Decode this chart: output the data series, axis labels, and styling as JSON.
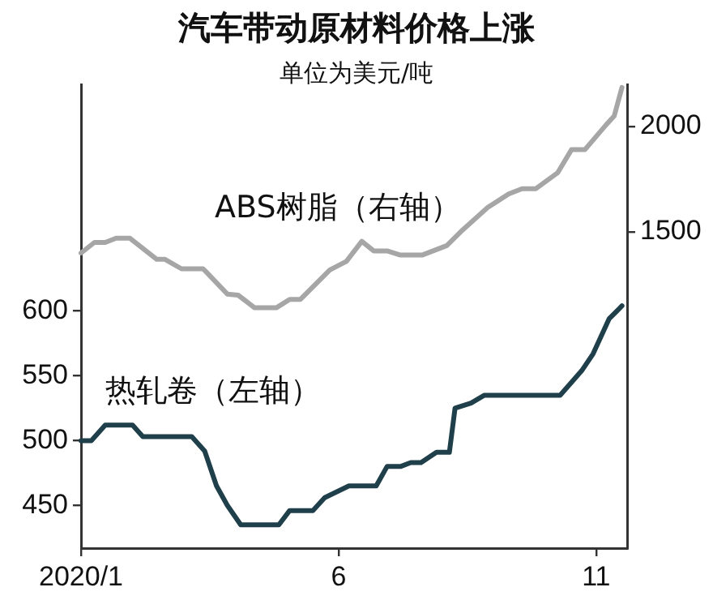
{
  "chart_data": {
    "type": "line",
    "title": "汽车带动原材料价格上涨",
    "subtitle": "单位为美元/吨",
    "xlim": [
      1,
      11.6
    ],
    "xticks": [
      {
        "value": 1,
        "label": "2020/1"
      },
      6,
      11
    ],
    "ylim": [
      417,
      775
    ],
    "yticks": [
      450,
      500,
      550,
      600
    ],
    "y2lim": [
      0,
      2200
    ],
    "y2ticks": [
      1500,
      2000
    ],
    "legend": false,
    "grid": false,
    "marker": "none",
    "line_style": "solid",
    "series": [
      {
        "name": "ABS树脂（右轴）",
        "color": "#a6a6a6",
        "axis": "y2",
        "x": [
          1,
          1.26,
          1.47,
          1.68,
          1.95,
          2.47,
          2.63,
          2.95,
          3.37,
          3.84,
          4.05,
          4.37,
          4.79,
          5.05,
          5.26,
          5.83,
          6.15,
          6.45,
          6.68,
          6.94,
          7.2,
          7.62,
          8.1,
          8.41,
          8.89,
          9.3,
          9.56,
          9.83,
          10.25,
          10.52,
          10.78,
          11.2,
          11.35,
          11.5
        ],
        "values": [
          1400,
          1450,
          1450,
          1470,
          1470,
          1370,
          1370,
          1325,
          1325,
          1205,
          1200,
          1140,
          1140,
          1180,
          1180,
          1320,
          1360,
          1455,
          1410,
          1410,
          1390,
          1390,
          1435,
          1510,
          1615,
          1680,
          1705,
          1705,
          1780,
          1890,
          1890,
          2010,
          2050,
          2185
        ]
      },
      {
        "name": "热轧卷（左轴）",
        "color": "#1f3f4b",
        "axis": "y",
        "x": [
          1,
          1.2,
          1.47,
          2.0,
          2.2,
          3.15,
          3.4,
          3.63,
          3.84,
          4.1,
          4.84,
          5.05,
          5.5,
          5.73,
          6.2,
          6.73,
          6.94,
          7.2,
          7.4,
          7.6,
          7.9,
          8.15,
          8.26,
          8.57,
          8.83,
          10.3,
          10.72,
          10.94,
          11.25,
          11.5
        ],
        "values": [
          500,
          500,
          512,
          512,
          503,
          503,
          492,
          465,
          450,
          435,
          435,
          446,
          446,
          456,
          465,
          465,
          480,
          480,
          483,
          483,
          491,
          491,
          525,
          529,
          535,
          535,
          554,
          567,
          594,
          604
        ]
      }
    ]
  }
}
